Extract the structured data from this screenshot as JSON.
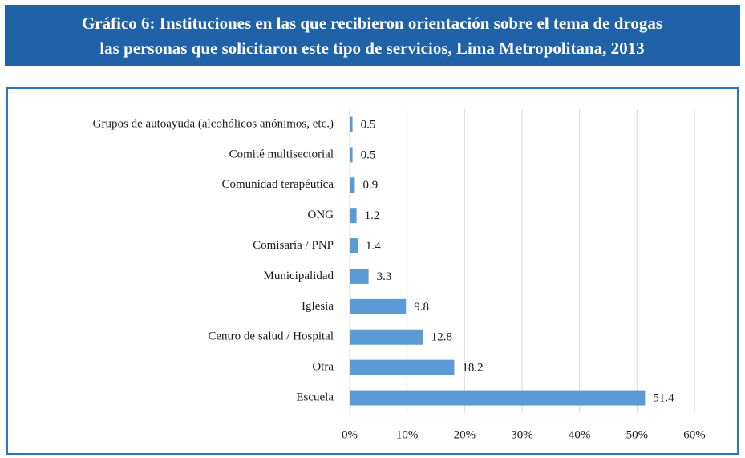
{
  "chart_data": {
    "type": "bar",
    "orientation": "horizontal",
    "title": [
      "Gráfico 6: Instituciones en las que recibieron orientación sobre el tema de drogas",
      "las personas que solicitaron este tipo de servicios, Lima Metropolitana, 2013"
    ],
    "categories": [
      "Grupos de autoayuda (alcohólicos anónimos, etc.)",
      "Comité multisectorial",
      "Comunidad terapéutica",
      "ONG",
      "Comisaría / PNP",
      "Municipalidad",
      "Iglesia",
      "Centro de salud / Hospital",
      "Otra",
      "Escuela"
    ],
    "values": [
      0.5,
      0.5,
      0.9,
      1.2,
      1.4,
      3.3,
      9.8,
      12.8,
      18.2,
      51.4
    ],
    "color": "#5b9bd5",
    "xlim": [
      0,
      60
    ],
    "xticks": [
      {
        "value": 0,
        "label": "0%"
      },
      {
        "value": 10,
        "label": "10%"
      },
      {
        "value": 20,
        "label": "20%"
      },
      {
        "value": 30,
        "label": "30%"
      },
      {
        "value": 40,
        "label": "40%"
      },
      {
        "value": 50,
        "label": "50%"
      },
      {
        "value": 60,
        "label": "60%"
      }
    ],
    "grid": true
  }
}
